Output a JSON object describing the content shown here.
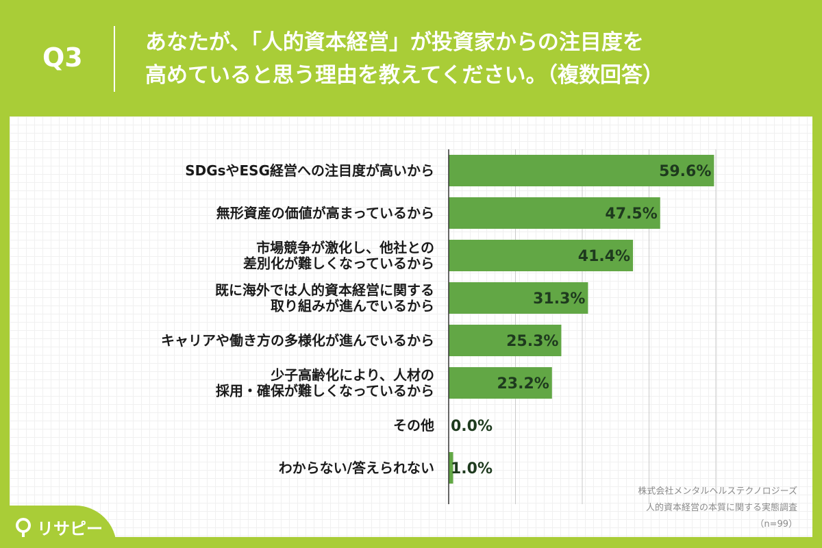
{
  "header": {
    "question_no": "Q3",
    "title_line1": "あなたが、「人的資本経営」が投資家からの注目度を",
    "title_line2": "高めていると思う理由を教えてください。（複数回答）"
  },
  "chart_data": {
    "type": "bar",
    "orientation": "horizontal",
    "categories": [
      [
        "SDGsやESG経営への注目度が高いから"
      ],
      [
        "無形資産の価値が高まっているから"
      ],
      [
        "市場競争が激化し、他社との",
        "差別化が難しくなっているから"
      ],
      [
        "既に海外では人的資本経営に関する",
        "取り組みが進んでいるから"
      ],
      [
        "キャリアや働き方の多様化が進んでいるから"
      ],
      [
        "少子高齢化により、人材の",
        "採用・確保が難しくなっているから"
      ],
      [
        "その他"
      ],
      [
        "わからない/答えられない"
      ]
    ],
    "values": [
      59.6,
      47.5,
      41.4,
      31.3,
      25.3,
      23.2,
      0.0,
      1.0
    ],
    "value_labels": [
      "59.6%",
      "47.5%",
      "41.4%",
      "31.3%",
      "25.3%",
      "23.2%",
      "0.0%",
      "1.0%"
    ],
    "xlim": [
      0,
      60
    ],
    "bar_color": "#62a745",
    "grid": true,
    "legend": "none"
  },
  "source": {
    "line1": "株式会社メンタルヘルステクノロジーズ",
    "line2": "人的資本経営の本質に関する実態調査",
    "line3": "（n=99）"
  },
  "brand": {
    "name": "リサピー",
    "icon": "pin-icon"
  },
  "colors": {
    "background": "#a9cd37",
    "bar": "#62a745",
    "value_text": "#1e3a1e"
  }
}
